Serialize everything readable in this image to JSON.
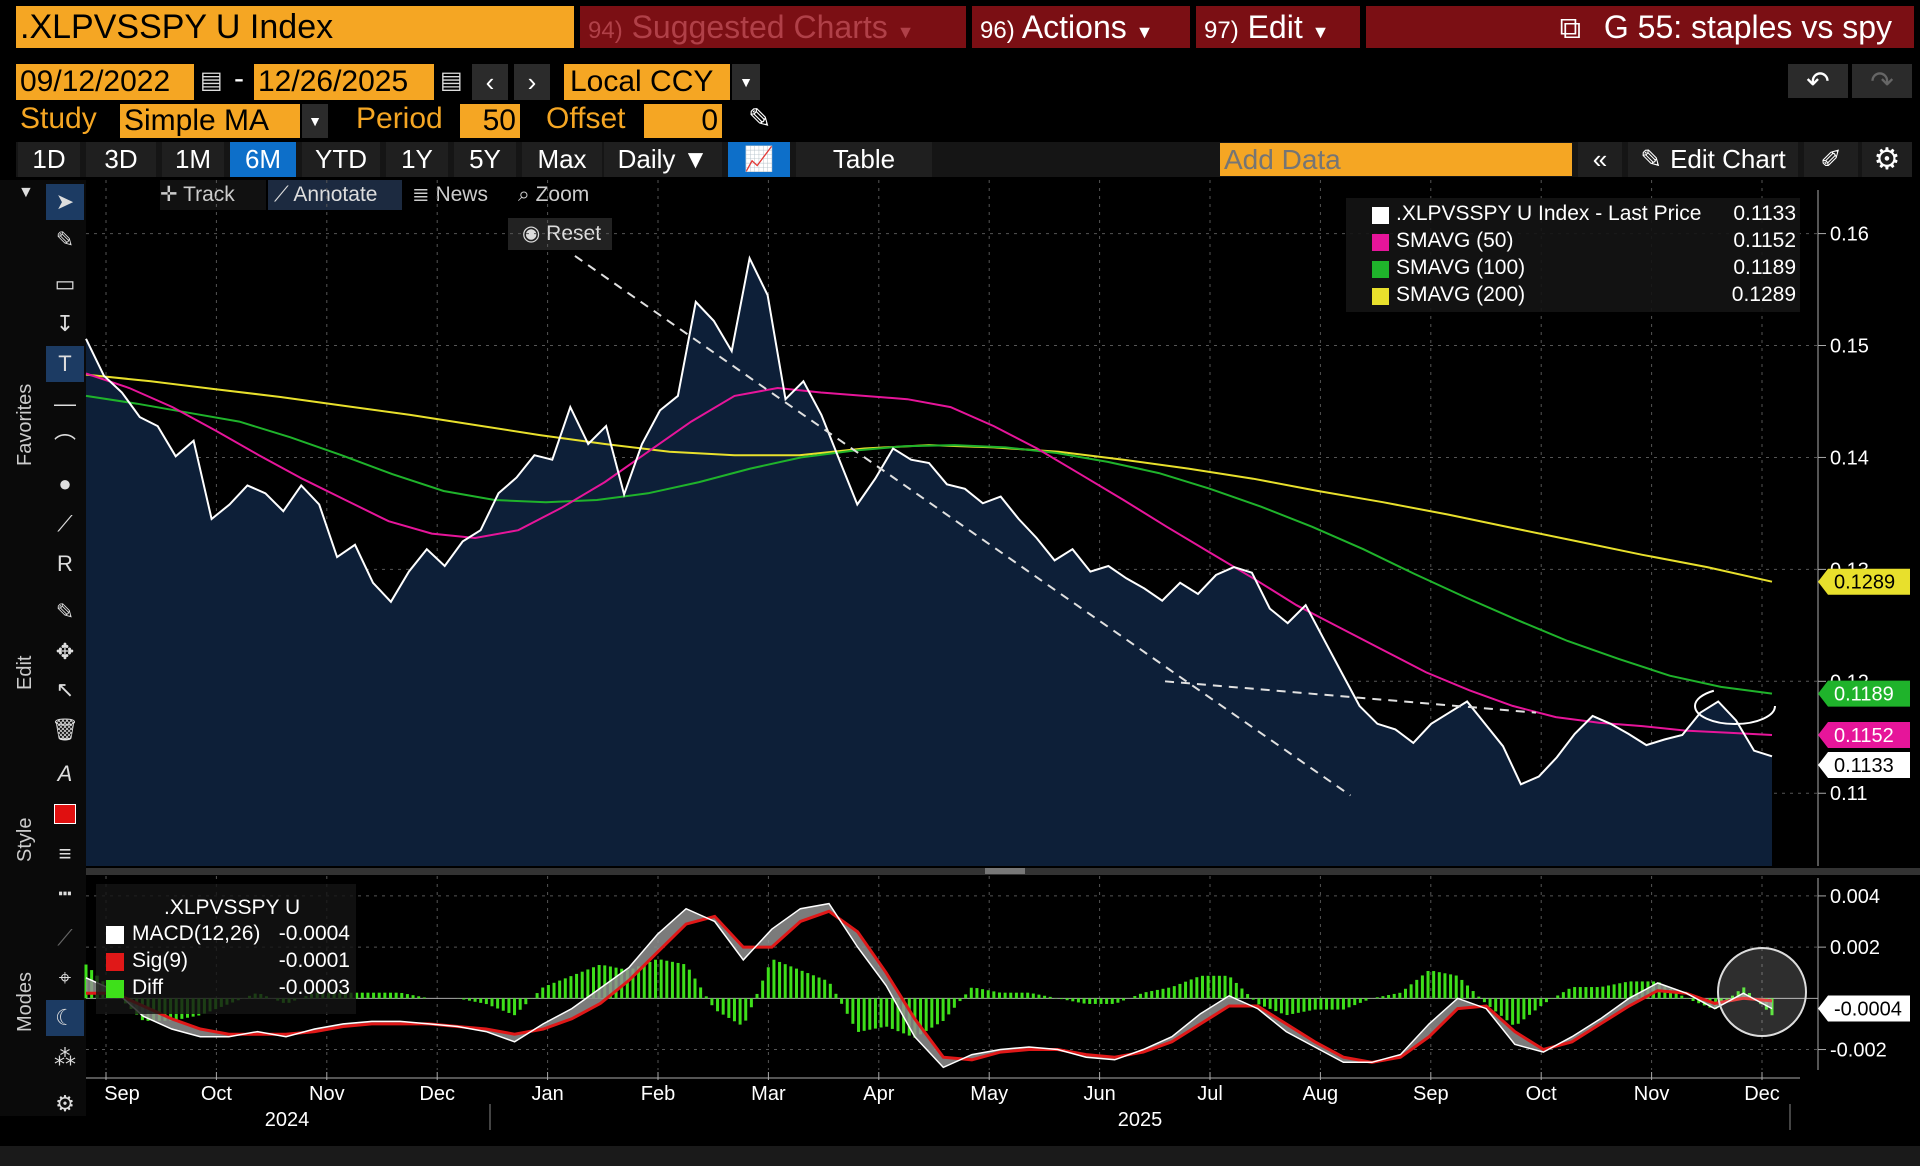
{
  "header": {
    "ticker": ".XLPVSSPY U Index",
    "suggested_num": "94)",
    "suggested_label": "Suggested Charts",
    "actions_num": "96)",
    "actions_label": "Actions",
    "edit_num": "97)",
    "edit_label": "Edit",
    "chart_title": "G 55: staples vs spy"
  },
  "controls": {
    "start_date": "09/12/2022",
    "dash": "-",
    "end_date": "12/26/2025",
    "currency": "Local CCY",
    "study_label": "Study",
    "study_value": "Simple MA",
    "period_label": "Period",
    "period_value": "50",
    "offset_label": "Offset",
    "offset_value": "0"
  },
  "toolbar": {
    "ranges": [
      "1D",
      "3D",
      "1M",
      "6M",
      "YTD",
      "1Y",
      "5Y",
      "Max"
    ],
    "active_range": "6M",
    "frequency": "Daily ▼",
    "table_label": "Table",
    "add_data_placeholder": "Add Data",
    "edit_chart_label": "Edit Chart"
  },
  "subtoolbar": {
    "track": "Track",
    "annotate": "Annotate",
    "news": "News",
    "zoom": "Zoom",
    "reset": "Reset"
  },
  "side_labels": {
    "favorites": "Favorites",
    "edit": "Edit",
    "style": "Style",
    "modes": "Modes"
  },
  "colors": {
    "orange": "#f5a623",
    "header_red": "#7b0f14",
    "price": "#ffffff",
    "sma50": "#e6159a",
    "sma100": "#1fb32b",
    "sma200": "#e8e02c",
    "area_fill": "#0d1f38",
    "macd_sig": "#e01818",
    "macd_diff": "#3ee01a"
  },
  "chart_data": [
    {
      "type": "line",
      "title": ".XLPVSSPY U Index - Last Price",
      "x_axis": {
        "months": [
          "Sep",
          "Oct",
          "Nov",
          "Dec",
          "Jan",
          "Feb",
          "Mar",
          "Apr",
          "May",
          "Jun",
          "Jul",
          "Aug",
          "Sep",
          "Oct",
          "Nov",
          "Dec"
        ],
        "years": [
          "2024",
          "2025"
        ]
      },
      "ylim": [
        0.1035,
        0.163
      ],
      "yticks": [
        "0.16",
        "0.15",
        "0.14",
        "0.13",
        "0.12",
        "0.11"
      ],
      "series": [
        {
          "name": ".XLPVSSPY U Index - Last Price",
          "legend_value": "0.1133",
          "color": "#ffffff",
          "values": [
            0.1506,
            0.1473,
            0.1458,
            0.1436,
            0.1428,
            0.1401,
            0.1415,
            0.1345,
            0.1358,
            0.1375,
            0.1368,
            0.1352,
            0.1375,
            0.1358,
            0.1311,
            0.1322,
            0.1288,
            0.1271,
            0.1298,
            0.1318,
            0.1303,
            0.1325,
            0.1335,
            0.1368,
            0.1382,
            0.1402,
            0.1398,
            0.1445,
            0.1412,
            0.1428,
            0.1367,
            0.1412,
            0.1442,
            0.1455,
            0.1539,
            0.1522,
            0.1495,
            0.1578,
            0.1545,
            0.1452,
            0.1468,
            0.1438,
            0.1398,
            0.1358,
            0.1381,
            0.1408,
            0.1398,
            0.1395,
            0.1376,
            0.1372,
            0.1359,
            0.1365,
            0.1345,
            0.1328,
            0.1308,
            0.1318,
            0.1298,
            0.1303,
            0.1292,
            0.1283,
            0.1272,
            0.1288,
            0.1278,
            0.1295,
            0.1302,
            0.1297,
            0.1265,
            0.1252,
            0.1268,
            0.1238,
            0.1208,
            0.1178,
            0.1162,
            0.1157,
            0.1145,
            0.1162,
            0.1172,
            0.1182,
            0.1162,
            0.1142,
            0.1108,
            0.1115,
            0.1132,
            0.1153,
            0.1169,
            0.1162,
            0.1153,
            0.1143,
            0.1148,
            0.1152,
            0.1172,
            0.1182,
            0.1165,
            0.1138,
            0.1133
          ]
        },
        {
          "name": "SMAVG (50)",
          "legend_value": "0.1152",
          "color": "#e6159a",
          "values": [
            0.1475,
            0.1462,
            0.1445,
            0.1424,
            0.1402,
            0.1381,
            0.1362,
            0.1343,
            0.1332,
            0.1328,
            0.1335,
            0.1355,
            0.1378,
            0.1405,
            0.1432,
            0.1455,
            0.1462,
            0.1458,
            0.1455,
            0.1452,
            0.1445,
            0.1428,
            0.1408,
            0.1385,
            0.1362,
            0.1338,
            0.1315,
            0.1292,
            0.1268,
            0.1248,
            0.1228,
            0.1208,
            0.1192,
            0.1178,
            0.1168,
            0.1163,
            0.116,
            0.1156,
            0.1154,
            0.1152
          ]
        },
        {
          "name": "SMAVG (100)",
          "legend_value": "0.1189",
          "color": "#1fb32b",
          "values": [
            0.1455,
            0.1448,
            0.144,
            0.1432,
            0.1418,
            0.1402,
            0.1385,
            0.137,
            0.1362,
            0.136,
            0.1362,
            0.1368,
            0.1378,
            0.139,
            0.14,
            0.1406,
            0.141,
            0.1411,
            0.1409,
            0.1404,
            0.1396,
            0.1386,
            0.1372,
            0.1356,
            0.1338,
            0.1318,
            0.1296,
            0.1275,
            0.1255,
            0.1236,
            0.122,
            0.1205,
            0.1195,
            0.1189
          ]
        },
        {
          "name": "SMAVG (200)",
          "legend_value": "0.1289",
          "color": "#e8e02c",
          "values": [
            0.1474,
            0.1468,
            0.1461,
            0.1454,
            0.1446,
            0.1438,
            0.1429,
            0.142,
            0.1412,
            0.1405,
            0.1402,
            0.1402,
            0.1408,
            0.1411,
            0.1409,
            0.1405,
            0.1398,
            0.139,
            0.1381,
            0.137,
            0.136,
            0.1349,
            0.1337,
            0.1325,
            0.1313,
            0.1302,
            0.1289
          ]
        }
      ],
      "trendlines": [
        {
          "from": [
            0.29,
            0.158
          ],
          "to": [
            0.75,
            0.1098
          ]
        },
        {
          "from": [
            0.64,
            0.12
          ],
          "to": [
            0.86,
            0.1172
          ]
        }
      ],
      "price_flags": [
        {
          "label": "0.1289",
          "value": 0.1289,
          "bg": "#e8e02c",
          "fg": "#000"
        },
        {
          "label": "0.1189",
          "value": 0.1189,
          "bg": "#1fb32b",
          "fg": "#fff"
        },
        {
          "label": "0.1152",
          "value": 0.1152,
          "bg": "#e6159a",
          "fg": "#fff"
        },
        {
          "label": "0.1133",
          "value": 0.1133,
          "bg": "#ffffff",
          "fg": "#000"
        }
      ]
    },
    {
      "type": "line",
      "title": ".XLPVSSPY U",
      "ylim": [
        -0.0028,
        0.0047
      ],
      "yticks": [
        "0.004",
        "0.002",
        "-0.002"
      ],
      "series": [
        {
          "name": "MACD(12,26)",
          "legend_value": "-0.0004",
          "color": "#ffffff",
          "values": [
            0.0008,
            0.0003,
            -0.0007,
            -0.0012,
            -0.0015,
            -0.0015,
            -0.0013,
            -0.0015,
            -0.0012,
            -0.001,
            -0.0009,
            -0.0009,
            -0.001,
            -0.0011,
            -0.0013,
            -0.0017,
            -0.001,
            -0.0004,
            0.0004,
            0.0012,
            0.0025,
            0.0035,
            0.003,
            0.0015,
            0.0027,
            0.0035,
            0.0037,
            0.002,
            0.0005,
            -0.0015,
            -0.0027,
            -0.0022,
            -0.002,
            -0.0019,
            -0.002,
            -0.0023,
            -0.0024,
            -0.002,
            -0.0015,
            -0.0006,
            0.0001,
            -0.0004,
            -0.0013,
            -0.0019,
            -0.0025,
            -0.0025,
            -0.0022,
            -0.001,
            0.0,
            -0.0004,
            -0.0018,
            -0.0021,
            -0.0015,
            -0.0008,
            0.0,
            0.0006,
            0.0002,
            -0.0004,
            0.0002,
            -0.0004
          ]
        },
        {
          "name": "Sig(9)",
          "legend_value": "-0.0001",
          "color": "#e01818",
          "values": [
            0.0002,
            0.0002,
            -0.0003,
            -0.0008,
            -0.0012,
            -0.0014,
            -0.0014,
            -0.0014,
            -0.0013,
            -0.0011,
            -0.001,
            -0.001,
            -0.001,
            -0.0011,
            -0.0012,
            -0.0014,
            -0.0012,
            -0.0008,
            -0.0002,
            0.0007,
            0.0018,
            0.0029,
            0.0032,
            0.002,
            0.002,
            0.003,
            0.0034,
            0.0026,
            0.001,
            -0.0008,
            -0.0023,
            -0.0024,
            -0.0021,
            -0.002,
            -0.002,
            -0.0022,
            -0.0023,
            -0.0021,
            -0.0017,
            -0.001,
            -0.0003,
            -0.0003,
            -0.001,
            -0.0017,
            -0.0023,
            -0.0025,
            -0.0023,
            -0.0015,
            -0.0004,
            -0.0003,
            -0.0013,
            -0.002,
            -0.0017,
            -0.001,
            -0.0003,
            0.0003,
            0.0002,
            -0.0002,
            0.0,
            -0.0001
          ]
        },
        {
          "name": "Diff",
          "legend_value": "-0.0003",
          "color": "#3ee01a"
        }
      ],
      "zero_flag": "-0.0004"
    }
  ]
}
